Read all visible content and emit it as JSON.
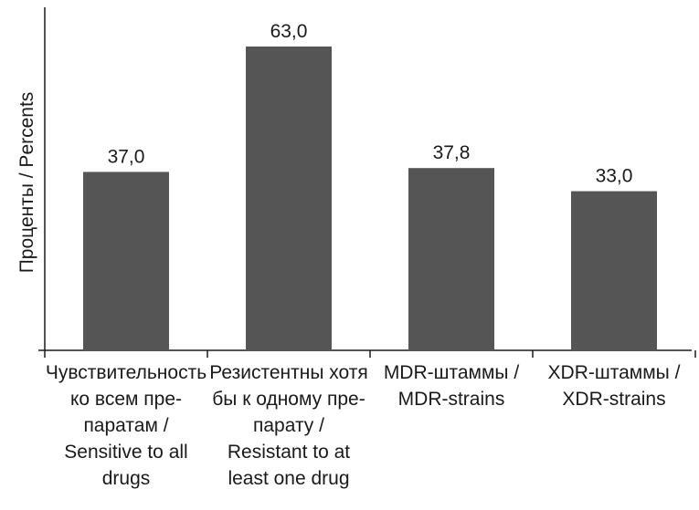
{
  "chart_data": {
    "type": "bar",
    "ylabel": "Проценты / Percents",
    "xlabel": "",
    "categories": [
      "Чувствительность\nко всем пре-\nпаратам /\nSensitive to all\ndrugs",
      "Резистентны хотя\nбы к одному пре-\nпарату /\nResistant to at\nleast one drug",
      "MDR-штаммы /\nMDR-strains",
      "XDR-штаммы /\nXDR-strains"
    ],
    "values": [
      37.0,
      63.0,
      37.8,
      33.0
    ],
    "data_labels": [
      "37,0",
      "63,0",
      "37,8",
      "33,0"
    ],
    "ylim": [
      0,
      63
    ],
    "grid": false,
    "legend": "none",
    "bar_color": "#555555"
  }
}
